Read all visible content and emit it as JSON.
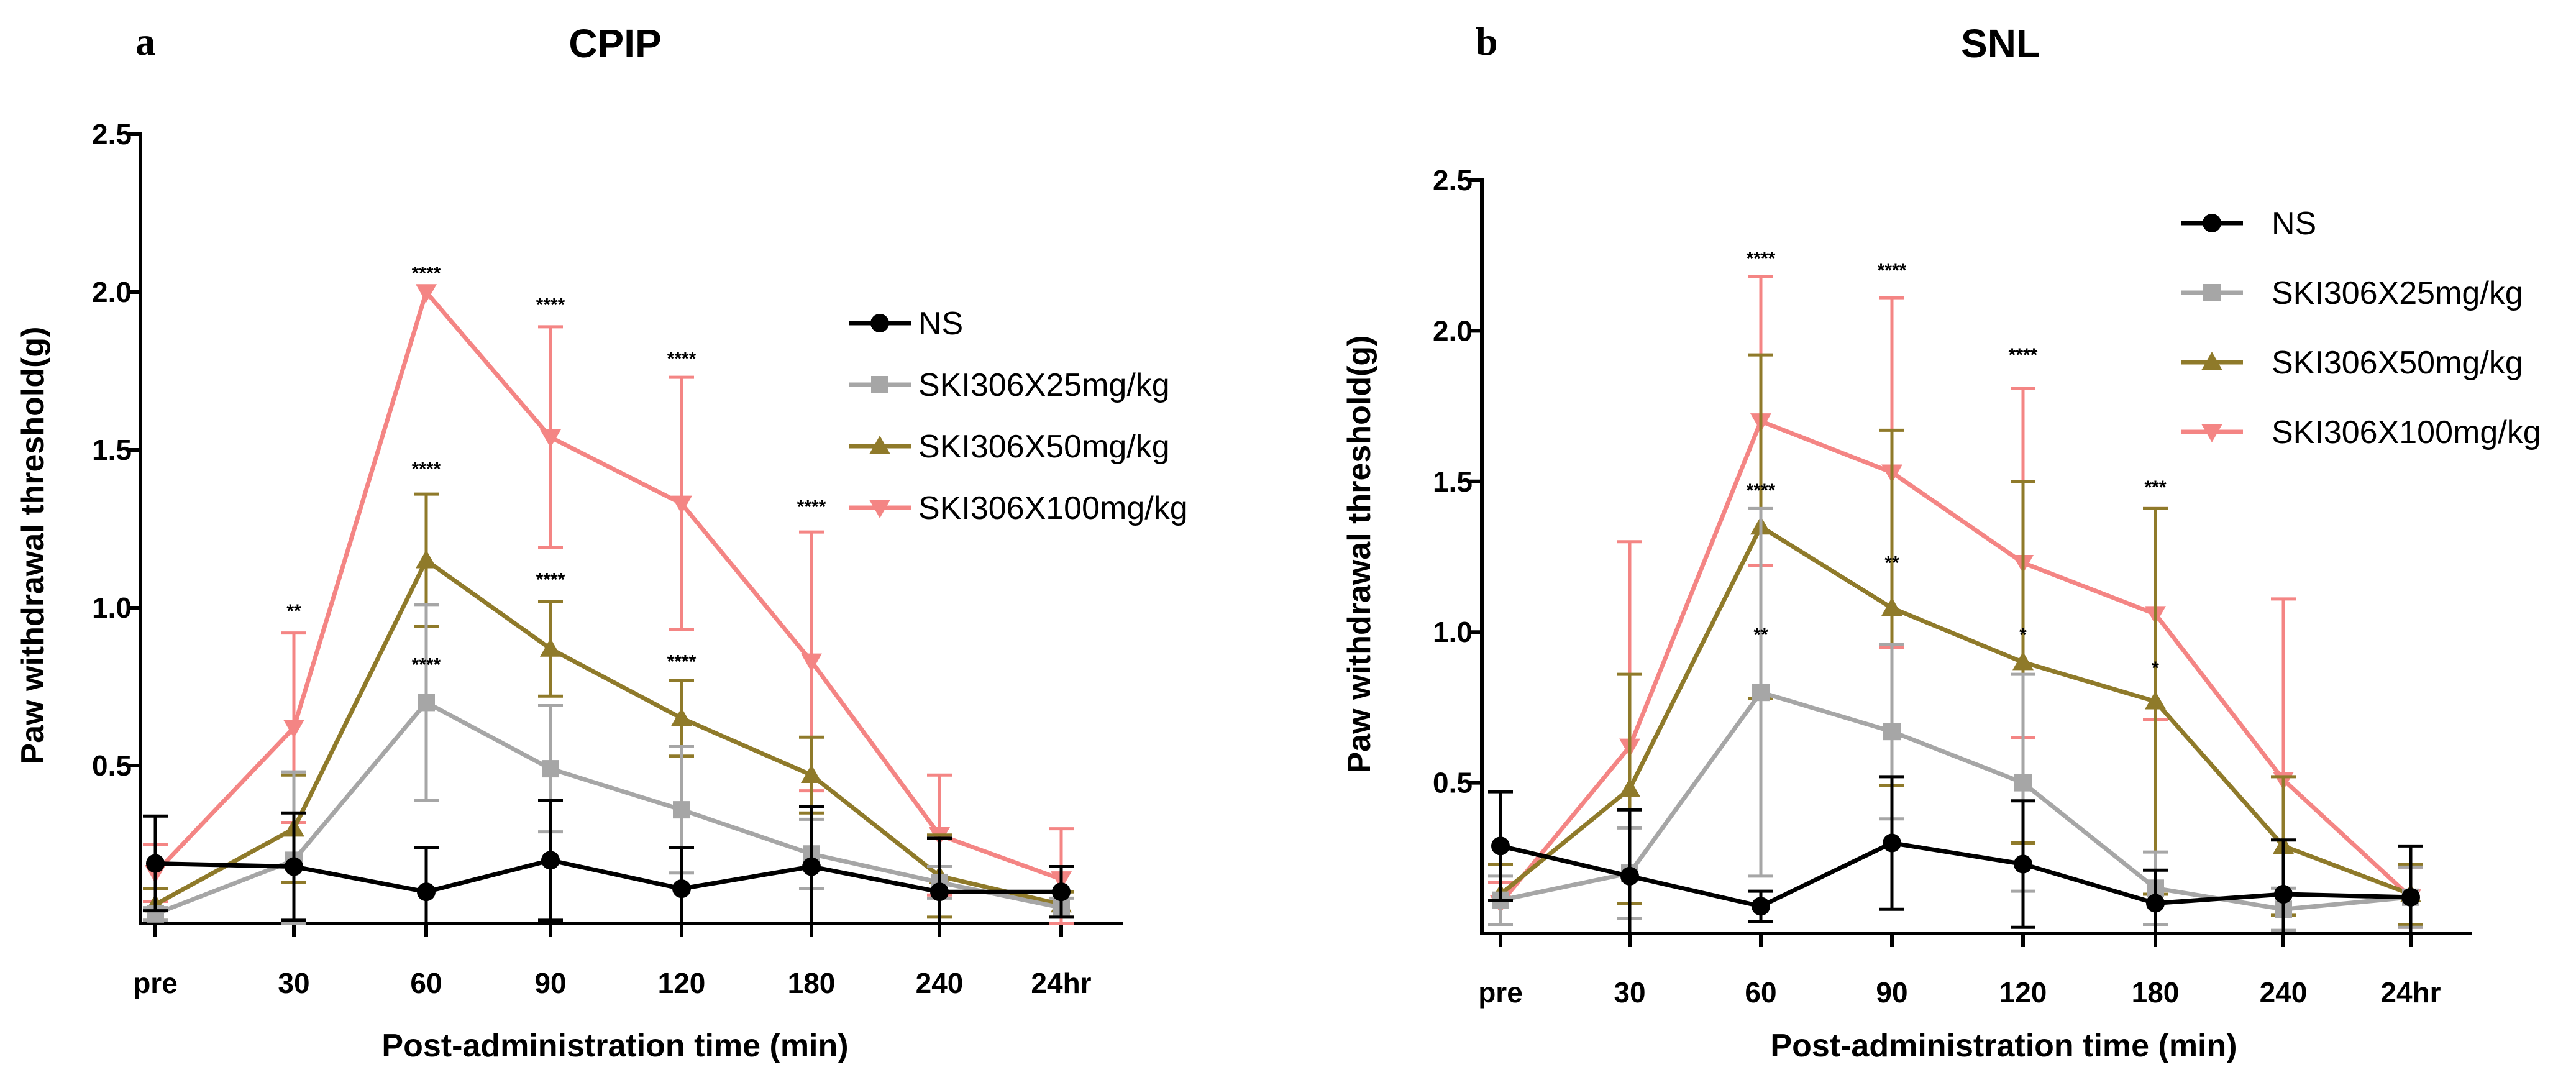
{
  "chart_data": [
    {
      "type": "line",
      "panel": "a",
      "title": "CPIP",
      "xlabel": "Post-administration time (min)",
      "ylabel": "Paw withdrawal threshold(g)",
      "categories": [
        "pre",
        "30",
        "60",
        "90",
        "120",
        "180",
        "240",
        "24hr"
      ],
      "yticks": [
        "0.5",
        "1.0",
        "1.5",
        "2.0",
        "2.5"
      ],
      "ylim": [
        0,
        2.5
      ],
      "legend_position": "right-center",
      "series": [
        {
          "name": "NS",
          "color": "#000000",
          "marker": "circle",
          "values": [
            0.19,
            0.18,
            0.1,
            0.2,
            0.11,
            0.18,
            0.1,
            0.1
          ],
          "errors": [
            0.15,
            0.17,
            0.14,
            0.19,
            0.13,
            0.19,
            0.17,
            0.08
          ]
        },
        {
          "name": "SKI306X25mg/kg",
          "color": "#a6a6a6",
          "marker": "square",
          "values": [
            0.03,
            0.2,
            0.7,
            0.49,
            0.36,
            0.22,
            0.13,
            0.05
          ],
          "errors": [
            0.02,
            0.28,
            0.31,
            0.2,
            0.2,
            0.11,
            0.05,
            0.03
          ]
        },
        {
          "name": "SKI306X50mg/kg",
          "color": "#8f7a2a",
          "marker": "triangle-up",
          "values": [
            0.06,
            0.3,
            1.15,
            0.87,
            0.65,
            0.47,
            0.15,
            0.06
          ],
          "errors": [
            0.05,
            0.17,
            0.21,
            0.15,
            0.12,
            0.12,
            0.13,
            0.04
          ]
        },
        {
          "name": "SKI306X100mg/kg",
          "color": "#f48584",
          "marker": "triangle-down",
          "values": [
            0.16,
            0.62,
            2.0,
            1.54,
            1.33,
            0.83,
            0.28,
            0.14
          ],
          "errors": [
            0.09,
            0.3,
            0.0,
            0.35,
            0.4,
            0.41,
            0.19,
            0.16
          ]
        }
      ],
      "annotations": [
        {
          "text": "**",
          "x": "30",
          "y": 0.97
        },
        {
          "text": "****",
          "x": "60",
          "y": 2.04
        },
        {
          "text": "****",
          "x": "60",
          "y": 1.42
        },
        {
          "text": "****",
          "x": "60",
          "y": 0.8
        },
        {
          "text": "****",
          "x": "90",
          "y": 1.94
        },
        {
          "text": "****",
          "x": "90",
          "y": 1.07
        },
        {
          "text": "****",
          "x": "120",
          "y": 1.77
        },
        {
          "text": "****",
          "x": "120",
          "y": 0.81
        },
        {
          "text": "****",
          "x": "180",
          "y": 1.3
        }
      ]
    },
    {
      "type": "line",
      "panel": "b",
      "title": "SNL",
      "xlabel": "Post-administration time (min)",
      "ylabel": "Paw withdrawal threshold(g)",
      "categories": [
        "pre",
        "30",
        "60",
        "90",
        "120",
        "180",
        "240",
        "24hr"
      ],
      "yticks": [
        "0.5",
        "1.0",
        "1.5",
        "2.0",
        "2.5"
      ],
      "ylim": [
        0,
        2.5
      ],
      "legend_position": "top-right",
      "series": [
        {
          "name": "NS",
          "color": "#000000",
          "marker": "circle",
          "values": [
            0.29,
            0.19,
            0.09,
            0.3,
            0.23,
            0.1,
            0.13,
            0.12
          ],
          "errors": [
            0.18,
            0.22,
            0.05,
            0.22,
            0.21,
            0.11,
            0.18,
            0.17
          ]
        },
        {
          "name": "SKI306X25mg/kg",
          "color": "#a6a6a6",
          "marker": "square",
          "values": [
            0.11,
            0.2,
            0.8,
            0.67,
            0.5,
            0.15,
            0.08,
            0.12
          ],
          "errors": [
            0.08,
            0.15,
            0.61,
            0.29,
            0.36,
            0.12,
            0.07,
            0.1
          ]
        },
        {
          "name": "SKI306X50mg/kg",
          "color": "#8f7a2a",
          "marker": "triangle-up",
          "values": [
            0.13,
            0.48,
            1.35,
            1.08,
            0.9,
            0.77,
            0.29,
            0.13
          ],
          "errors": [
            0.1,
            0.38,
            0.57,
            0.59,
            0.6,
            0.64,
            0.23,
            0.1
          ]
        },
        {
          "name": "SKI306X100mg/kg",
          "color": "#f48584",
          "marker": "triangle-down",
          "values": [
            0.1,
            0.62,
            1.7,
            1.53,
            1.23,
            1.06,
            0.51,
            0.12
          ],
          "errors": [
            0.07,
            0.68,
            0.48,
            0.58,
            0.58,
            0.35,
            0.6,
            0.1
          ]
        }
      ],
      "annotations": [
        {
          "text": "****",
          "x": "60",
          "y": 2.22
        },
        {
          "text": "****",
          "x": "60",
          "y": 1.45
        },
        {
          "text": "**",
          "x": "60",
          "y": 0.97
        },
        {
          "text": "****",
          "x": "90",
          "y": 2.18
        },
        {
          "text": "**",
          "x": "90",
          "y": 1.21
        },
        {
          "text": "****",
          "x": "120",
          "y": 1.9
        },
        {
          "text": "*",
          "x": "120",
          "y": 0.97
        },
        {
          "text": "***",
          "x": "180",
          "y": 1.46
        },
        {
          "text": "*",
          "x": "180",
          "y": 0.86
        }
      ]
    }
  ]
}
